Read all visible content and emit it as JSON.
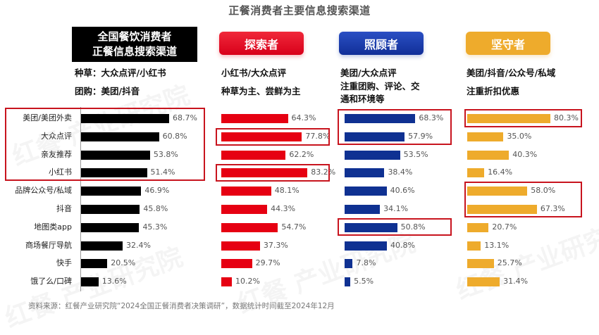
{
  "title": "正餐消费者主要信息搜索渠道",
  "headers": {
    "overall": {
      "line1": "全国餐饮消费者",
      "line2": "正餐信息搜索渠道",
      "desc1": "种草：大众点评/小红书",
      "desc2": "团购：美团/抖音"
    },
    "explorer": {
      "label": "探索者",
      "desc1": "小红书/大众点评",
      "desc2": "种草为主、尝鲜为主"
    },
    "caretaker": {
      "label": "照顾者",
      "desc1": "美团/大众点评",
      "desc2": "注重团购、评论、交",
      "desc3": "通和环境等"
    },
    "keeper": {
      "label": "坚守者",
      "desc1": "美团/抖音/公众号/私域",
      "desc2": "注重折扣优惠"
    }
  },
  "colors": {
    "overall": "#000000",
    "explorer": "#e60012",
    "caretaker": "#0f3192",
    "keeper": "#eeab2c",
    "highlight": "#c8141e"
  },
  "footer": "资料来源：红餐产业研究院“2024全国正餐消费者决策调研”，数据统计时间截至2024年12月",
  "watermark": "红餐 产业研究院",
  "chart_data": {
    "type": "bar",
    "orientation": "horizontal",
    "title": "正餐消费者主要信息搜索渠道",
    "categories": [
      "美团/美团外卖",
      "大众点评",
      "亲友推荐",
      "小红书",
      "品牌公众号/私域",
      "抖音",
      "地图类app",
      "商场餐厅导航",
      "快手",
      "饿了么/口碑"
    ],
    "series": [
      {
        "name": "全国餐饮消费者",
        "values": [
          68.7,
          60.8,
          53.8,
          51.4,
          46.9,
          45.8,
          45.3,
          32.4,
          20.5,
          13.6
        ],
        "labels": [
          "68.7%",
          "60.8%",
          "53.8%",
          "51.4%",
          "46.9%",
          "45.8%",
          "45.3%",
          "32.4%",
          "20.5%",
          "13.6%"
        ]
      },
      {
        "name": "探索者",
        "values": [
          64.3,
          77.8,
          62.2,
          83.2,
          48.1,
          44.3,
          54.7,
          37.3,
          29.7,
          10.2
        ],
        "labels": [
          "64.3%",
          "77.8%",
          "62.2%",
          "83.2%",
          "48.1%",
          "44.3%",
          "54.7%",
          "37.3%",
          "29.7%",
          "10.2%"
        ]
      },
      {
        "name": "照顾者",
        "values": [
          68.3,
          57.9,
          53.5,
          38.4,
          40.6,
          34.1,
          50.8,
          40.8,
          7.8,
          5.5
        ],
        "labels": [
          "68.3%",
          "57.9%",
          "53.5%",
          "38.4%",
          "40.6%",
          "34.1%",
          "50.8%",
          "40.8%",
          "7.8%",
          "5.5%"
        ]
      },
      {
        "name": "坚守者",
        "values": [
          80.3,
          35.0,
          40.3,
          16.4,
          58.0,
          67.3,
          20.7,
          13.1,
          25.7,
          31.4
        ],
        "labels": [
          "80.3%",
          "35.0%",
          "40.3%",
          "16.4%",
          "58.0%",
          "67.3%",
          "20.7%",
          "13.1%",
          "25.7%",
          "31.4%"
        ]
      }
    ],
    "highlights": {
      "全国餐饮消费者": [
        "美团/美团外卖",
        "大众点评",
        "亲友推荐",
        "小红书"
      ],
      "探索者": [
        "大众点评",
        "小红书"
      ],
      "照顾者": [
        "美团/美团外卖",
        "大众点评",
        "地图类app"
      ],
      "坚守者": [
        "美团/美团外卖",
        "品牌公众号/私域",
        "抖音"
      ]
    },
    "xlabel": "",
    "ylabel": "",
    "xlim": [
      0,
      100
    ],
    "grid": false,
    "legend": "none"
  }
}
